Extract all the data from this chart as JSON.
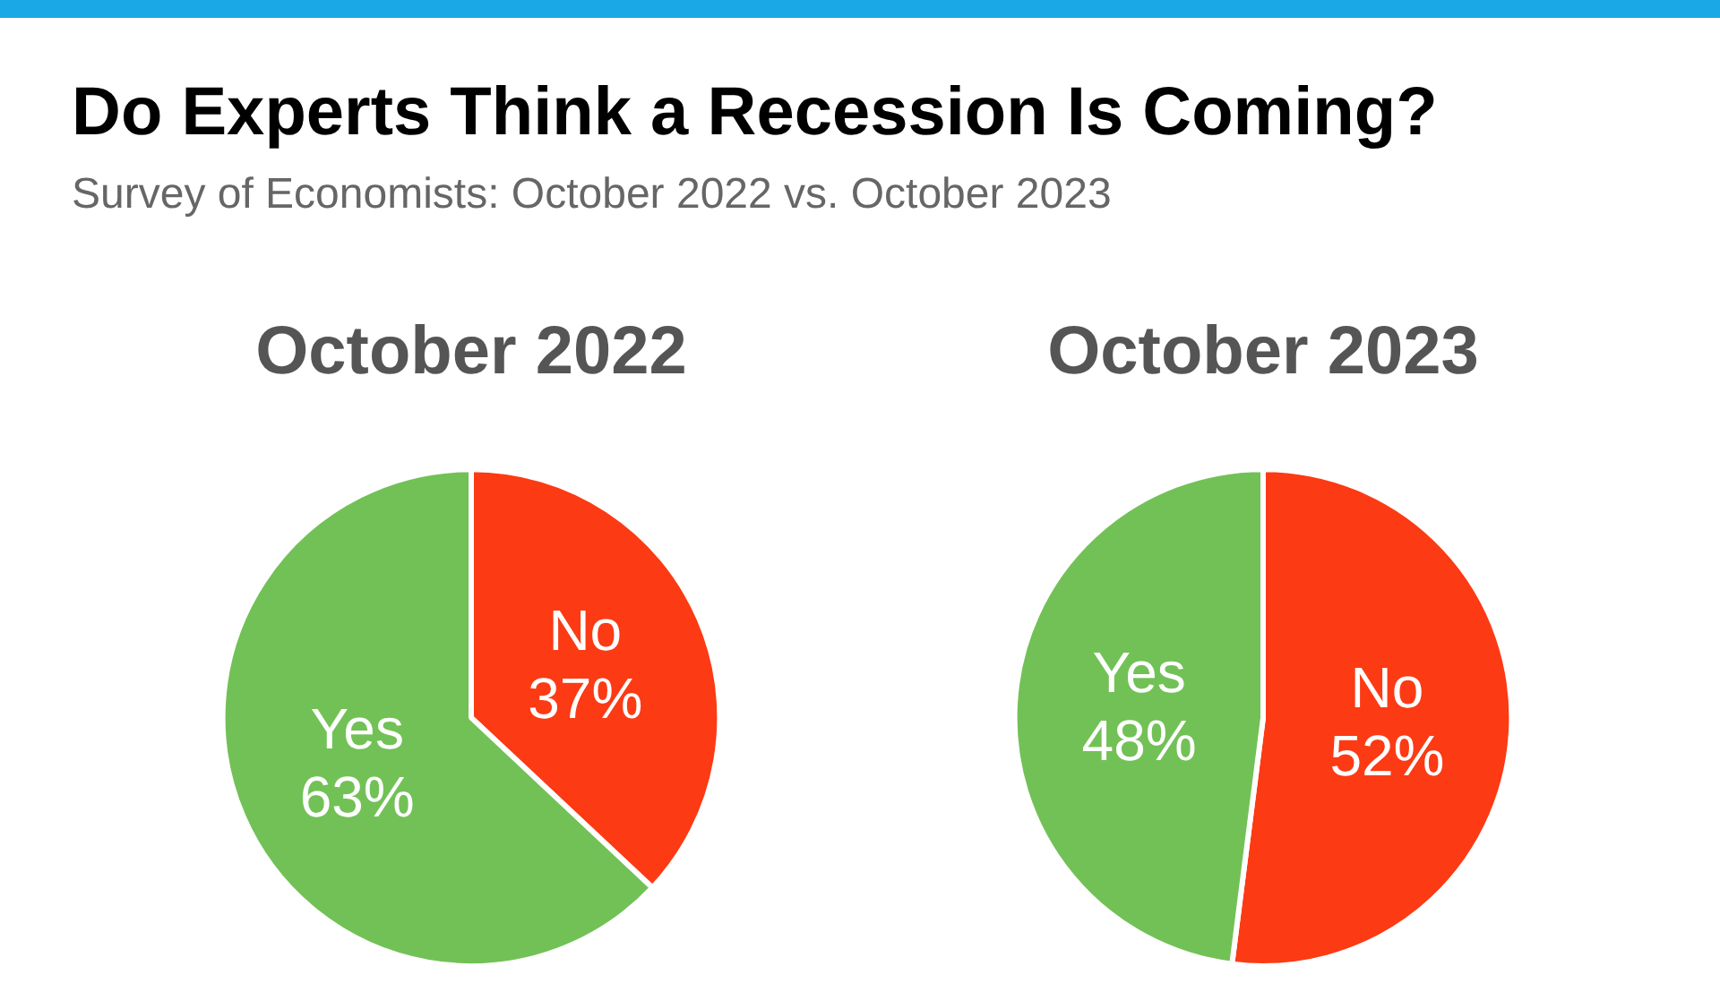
{
  "chart_data": [
    {
      "type": "other",
      "title": "Do Experts Think a Recession Is Coming?",
      "subtitle": "Survey of Economists: October 2022 vs. October 2023"
    },
    {
      "type": "pie",
      "title": "October 2022",
      "categories": [
        "No",
        "Yes"
      ],
      "values": [
        37,
        63
      ],
      "colors": [
        "#fc3a14",
        "#72c156"
      ],
      "value_labels": [
        "37%",
        "63%"
      ],
      "legend": false
    },
    {
      "type": "pie",
      "title": "October 2023",
      "categories": [
        "No",
        "Yes"
      ],
      "values": [
        52,
        48
      ],
      "colors": [
        "#fc3a14",
        "#72c156"
      ],
      "value_labels": [
        "52%",
        "48%"
      ],
      "legend": false
    }
  ]
}
